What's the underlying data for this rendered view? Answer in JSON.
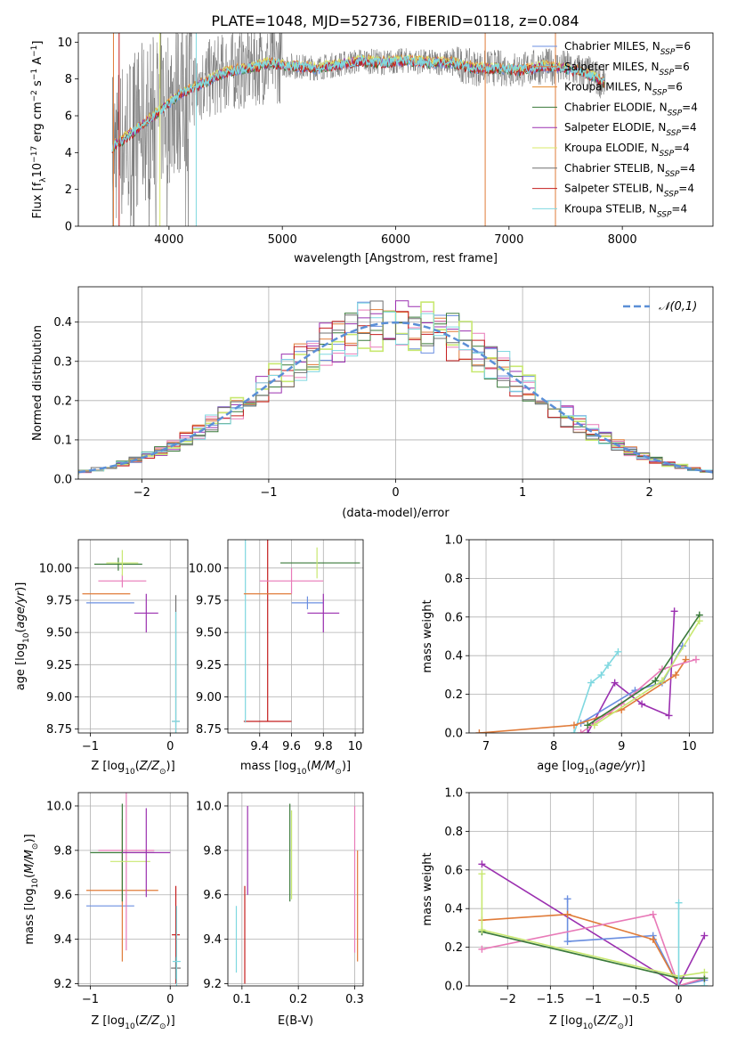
{
  "colors": {
    "chabrier_miles": "#6b8fe0",
    "salpeter_miles": "#e07b39",
    "kroupa_miles": "#e68a2e",
    "chabrier_elodie": "#3a7a3a",
    "salpeter_elodie": "#9b30b0",
    "kroupa_elodie": "#d8e86a",
    "chabrier_stelib": "#707070",
    "salpeter_stelib": "#c41e1e",
    "kroupa_stelib": "#7fd8e0",
    "pink": "#e87ab8",
    "lime": "#c8e870",
    "normal": "#5b8fd6"
  },
  "chart_data": [
    {
      "id": "spectrum",
      "type": "line",
      "title": "PLATE=1048, MJD=52736, FIBERID=0118, z=0.084",
      "xlabel": "wavelength [Angstrom, rest frame]",
      "ylabel": "Flux [f_λ10^-17 erg cm^-2 s^-1 A^-1]",
      "xlim": [
        3200,
        8800
      ],
      "ylim": [
        0,
        10.5
      ],
      "xticks": [
        4000,
        5000,
        6000,
        7000,
        8000
      ],
      "yticks": [
        0,
        2,
        4,
        6,
        8,
        10
      ],
      "legend_position": "top-right",
      "legend": [
        {
          "label": "Chabrier MILES, N_SSP=6",
          "color_key": "chabrier_miles"
        },
        {
          "label": "Salpeter MILES, N_SSP=6",
          "color_key": "salpeter_miles"
        },
        {
          "label": "Kroupa MILES, N_SSP=6",
          "color_key": "kroupa_miles"
        },
        {
          "label": "Chabrier ELODIE, N_SSP=4",
          "color_key": "chabrier_elodie"
        },
        {
          "label": "Salpeter ELODIE, N_SSP=4",
          "color_key": "salpeter_elodie"
        },
        {
          "label": "Kroupa ELODIE, N_SSP=4",
          "color_key": "kroupa_elodie"
        },
        {
          "label": "Chabrier STELIB, N_SSP=4",
          "color_key": "chabrier_stelib"
        },
        {
          "label": "Salpeter STELIB, N_SSP=4",
          "color_key": "salpeter_stelib"
        },
        {
          "label": "Kroupa STELIB, N_SSP=4",
          "color_key": "kroupa_stelib"
        }
      ],
      "model_curve": {
        "x": [
          3500,
          3700,
          3900,
          4100,
          4300,
          4500,
          4700,
          4900,
          5100,
          5300,
          5500,
          5700,
          5900,
          6100,
          6300,
          6500,
          6700,
          6900,
          7100,
          7300,
          7500,
          7700,
          7850
        ],
        "y": [
          4.3,
          5.2,
          6.2,
          7.2,
          7.8,
          8.4,
          8.6,
          8.9,
          8.7,
          8.6,
          8.8,
          9.0,
          8.9,
          9.0,
          8.9,
          8.9,
          8.6,
          8.6,
          8.5,
          8.7,
          8.6,
          8.3,
          7.8
        ]
      }
    },
    {
      "id": "residuals",
      "type": "line",
      "xlabel": "(data-model)/error",
      "ylabel": "Normed distribution",
      "xlim": [
        -2.5,
        2.5
      ],
      "ylim": [
        0,
        0.49
      ],
      "xticks": [
        -2,
        -1,
        0,
        1,
        2
      ],
      "yticks": [
        0.0,
        0.1,
        0.2,
        0.3,
        0.4
      ],
      "legend_position": "top-right",
      "legend": [
        {
          "label": "𝒩(0,1)",
          "color_key": "normal"
        }
      ],
      "grid": true
    },
    {
      "id": "age_vs_Z",
      "type": "scatter",
      "xlabel": "Z [log10(Z/Z⊙)]",
      "ylabel": "age  [log10(age/yr)]",
      "xlim": [
        -1.15,
        0.22
      ],
      "ylim": [
        8.72,
        10.22
      ],
      "xticks": [
        -1,
        0
      ],
      "yticks": [
        8.75,
        9.0,
        9.25,
        9.5,
        9.75,
        10.0
      ],
      "grid": true,
      "points": [
        {
          "x": -0.75,
          "y": 9.73,
          "xerr": 0.3,
          "yerr": 0.0,
          "color_key": "chabrier_miles"
        },
        {
          "x": -0.8,
          "y": 9.8,
          "xerr": 0.3,
          "yerr": 0.0,
          "color_key": "salpeter_miles"
        },
        {
          "x": -0.6,
          "y": 9.9,
          "xerr": 0.3,
          "yerr": 0.05,
          "color_key": "pink"
        },
        {
          "x": -0.65,
          "y": 10.03,
          "xerr": 0.3,
          "yerr": 0.05,
          "color_key": "chabrier_elodie"
        },
        {
          "x": -0.6,
          "y": 10.04,
          "xerr": 0.2,
          "yerr": 0.1,
          "color_key": "lime"
        },
        {
          "x": -0.3,
          "y": 9.65,
          "xerr": 0.15,
          "yerr": 0.15,
          "color_key": "salpeter_elodie"
        },
        {
          "x": 0.07,
          "y": 8.81,
          "xerr": 0.05,
          "yerr": 0.98,
          "color_key": "chabrier_stelib"
        },
        {
          "x": 0.07,
          "y": 8.81,
          "xerr": 0.05,
          "yerr": 0.85,
          "color_key": "kroupa_stelib"
        }
      ]
    },
    {
      "id": "age_vs_mass",
      "type": "scatter",
      "xlabel": "mass [log10(M/M⊙)]",
      "ylabel": "",
      "xlim": [
        9.2,
        10.05
      ],
      "ylim": [
        8.72,
        10.22
      ],
      "xticks": [
        9.4,
        9.6,
        9.8,
        10.0
      ],
      "yticks": [
        8.75,
        9.0,
        9.25,
        9.5,
        9.75,
        10.0
      ],
      "grid": true,
      "points": [
        {
          "x": 9.45,
          "y": 8.81,
          "xerr": 0.15,
          "yerr": 0.0,
          "color_key": "salpeter_stelib"
        },
        {
          "x": 9.45,
          "y": 9.63,
          "xerr": 0.0,
          "yerr": 0.82,
          "color_key": "salpeter_stelib"
        },
        {
          "x": 9.31,
          "y": 9.75,
          "xerr": 0.0,
          "yerr": 0.95,
          "color_key": "kroupa_stelib"
        },
        {
          "x": 9.45,
          "y": 9.8,
          "xerr": 0.15,
          "yerr": 0.0,
          "color_key": "salpeter_miles"
        },
        {
          "x": 9.7,
          "y": 9.73,
          "xerr": 0.1,
          "yerr": 0.05,
          "color_key": "chabrier_miles"
        },
        {
          "x": 9.6,
          "y": 9.9,
          "xerr": 0.2,
          "yerr": 0.1,
          "color_key": "pink"
        },
        {
          "x": 9.8,
          "y": 9.65,
          "xerr": 0.1,
          "yerr": 0.15,
          "color_key": "salpeter_elodie"
        },
        {
          "x": 9.78,
          "y": 10.04,
          "xerr": 0.25,
          "yerr": 0.0,
          "color_key": "chabrier_elodie"
        },
        {
          "x": 9.76,
          "y": 10.04,
          "xerr": 0.0,
          "yerr": 0.12,
          "color_key": "lime"
        }
      ]
    },
    {
      "id": "massweight_vs_age",
      "type": "line",
      "xlabel": "age  [log10(age/yr)]",
      "ylabel": "mass weight",
      "xlim": [
        6.75,
        10.35
      ],
      "ylim": [
        0,
        1.0
      ],
      "xticks": [
        7,
        8,
        9,
        10
      ],
      "yticks": [
        0.0,
        0.2,
        0.4,
        0.6,
        0.8,
        1.0
      ],
      "grid": true,
      "series": [
        {
          "color_key": "kroupa_stelib",
          "x": [
            8.3,
            8.55,
            8.7,
            8.8,
            8.95
          ],
          "y": [
            0.0,
            0.26,
            0.3,
            0.35,
            0.42
          ]
        },
        {
          "color_key": "salpeter_elodie",
          "x": [
            8.5,
            8.9,
            9.3,
            9.7,
            9.78
          ],
          "y": [
            0.0,
            0.26,
            0.15,
            0.09,
            0.63
          ]
        },
        {
          "color_key": "chabrier_miles",
          "x": [
            8.4,
            9.2,
            9.6,
            9.9
          ],
          "y": [
            0.05,
            0.22,
            0.26,
            0.45
          ]
        },
        {
          "color_key": "salpeter_miles",
          "x": [
            6.9,
            8.3,
            9.0,
            9.8,
            9.95
          ],
          "y": [
            0.0,
            0.04,
            0.12,
            0.3,
            0.38
          ]
        },
        {
          "color_key": "pink",
          "x": [
            8.4,
            9.0,
            9.6,
            10.1
          ],
          "y": [
            0.0,
            0.15,
            0.33,
            0.38
          ]
        },
        {
          "color_key": "chabrier_elodie",
          "x": [
            8.5,
            9.5,
            10.15
          ],
          "y": [
            0.04,
            0.27,
            0.61
          ]
        },
        {
          "color_key": "lime",
          "x": [
            8.6,
            9.6,
            10.15
          ],
          "y": [
            0.04,
            0.27,
            0.58
          ]
        }
      ]
    },
    {
      "id": "mass_vs_Z",
      "type": "scatter",
      "xlabel": "Z [log10(Z/Z⊙)]",
      "ylabel": "mass [log10(M/M⊙)]",
      "xlim": [
        -1.15,
        0.22
      ],
      "ylim": [
        9.19,
        10.06
      ],
      "xticks": [
        -1,
        0
      ],
      "yticks": [
        9.2,
        9.4,
        9.6,
        9.8,
        10.0
      ],
      "grid": true,
      "points": [
        {
          "x": -0.75,
          "y": 9.55,
          "xerr": 0.3,
          "yerr": 0.0,
          "color_key": "chabrier_miles"
        },
        {
          "x": -0.6,
          "y": 9.62,
          "xerr": 0.45,
          "yerr": 0.32,
          "color_key": "salpeter_miles"
        },
        {
          "x": -0.55,
          "y": 9.8,
          "xerr": 0.35,
          "yerr": 0.45,
          "color_key": "pink"
        },
        {
          "x": -0.6,
          "y": 9.79,
          "xerr": 0.4,
          "yerr": 0.22,
          "color_key": "chabrier_elodie"
        },
        {
          "x": -0.5,
          "y": 9.75,
          "xerr": 0.25,
          "yerr": 0.0,
          "color_key": "lime"
        },
        {
          "x": -0.3,
          "y": 9.79,
          "xerr": 0.3,
          "yerr": 0.2,
          "color_key": "salpeter_elodie"
        },
        {
          "x": 0.07,
          "y": 9.42,
          "xerr": 0.05,
          "yerr": 0.22,
          "color_key": "salpeter_stelib"
        },
        {
          "x": 0.07,
          "y": 9.27,
          "xerr": 0.06,
          "yerr": 0.05,
          "color_key": "chabrier_stelib"
        },
        {
          "x": 0.08,
          "y": 9.3,
          "xerr": 0.05,
          "yerr": 0.25,
          "color_key": "kroupa_stelib"
        }
      ]
    },
    {
      "id": "mass_vs_ebv",
      "type": "scatter",
      "xlabel": "E(B-V)",
      "ylabel": "",
      "xlim": [
        0.075,
        0.315
      ],
      "ylim": [
        9.19,
        10.06
      ],
      "xticks": [
        0.1,
        0.2,
        0.3
      ],
      "yticks": [
        9.2,
        9.4,
        9.6,
        9.8,
        10.0
      ],
      "grid": true,
      "points": [
        {
          "x": 0.09,
          "y": 9.4,
          "xerr": 0.0,
          "yerr": 0.15,
          "color_key": "kroupa_stelib"
        },
        {
          "x": 0.105,
          "y": 9.42,
          "xerr": 0.0,
          "yerr": 0.22,
          "color_key": "salpeter_stelib"
        },
        {
          "x": 0.11,
          "y": 9.8,
          "xerr": 0.0,
          "yerr": 0.2,
          "color_key": "salpeter_elodie"
        },
        {
          "x": 0.185,
          "y": 9.79,
          "xerr": 0.0,
          "yerr": 0.22,
          "color_key": "chabrier_elodie"
        },
        {
          "x": 0.188,
          "y": 9.78,
          "xerr": 0.0,
          "yerr": 0.2,
          "color_key": "lime"
        },
        {
          "x": 0.3,
          "y": 9.67,
          "xerr": 0.0,
          "yerr": 0.33,
          "color_key": "pink"
        },
        {
          "x": 0.305,
          "y": 9.55,
          "xerr": 0.0,
          "yerr": 0.25,
          "color_key": "salpeter_miles"
        }
      ]
    },
    {
      "id": "massweight_vs_Z",
      "type": "line",
      "xlabel": "Z [log10(Z/Z⊙)]",
      "ylabel": "mass weight",
      "xlim": [
        -2.45,
        0.4
      ],
      "ylim": [
        0,
        1.0
      ],
      "xticks": [
        -2.0,
        -1.5,
        -1.0,
        -0.5,
        0.0
      ],
      "yticks": [
        0.0,
        0.2,
        0.4,
        0.6,
        0.8,
        1.0
      ],
      "grid": true,
      "series": [
        {
          "color_key": "salpeter_elodie",
          "x": [
            -2.3,
            0.0,
            0.3
          ],
          "y": [
            0.63,
            0.0,
            0.26
          ]
        },
        {
          "color_key": "chabrier_miles",
          "x": [
            -1.3,
            -1.3,
            -0.3,
            0.0,
            0.3
          ],
          "y": [
            0.45,
            0.23,
            0.26,
            0.0,
            0.03
          ]
        },
        {
          "color_key": "salpeter_miles",
          "x": [
            -2.3,
            -1.3,
            -0.3,
            0.0,
            0.3
          ],
          "y": [
            0.34,
            0.37,
            0.24,
            0.0,
            0.04
          ]
        },
        {
          "color_key": "pink",
          "x": [
            -2.3,
            -0.3,
            0.0,
            0.3
          ],
          "y": [
            0.19,
            0.37,
            0.0,
            0.04
          ]
        },
        {
          "color_key": "chabrier_elodie",
          "x": [
            -2.3,
            0.0,
            0.3
          ],
          "y": [
            0.28,
            0.04,
            0.04
          ]
        },
        {
          "color_key": "lime",
          "x": [
            -2.3,
            -2.3,
            0.0,
            0.3
          ],
          "y": [
            0.58,
            0.29,
            0.05,
            0.07
          ]
        },
        {
          "color_key": "kroupa_stelib",
          "x": [
            0.0,
            0.0,
            0.3
          ],
          "y": [
            0.43,
            0.0,
            0.0
          ]
        }
      ]
    }
  ]
}
